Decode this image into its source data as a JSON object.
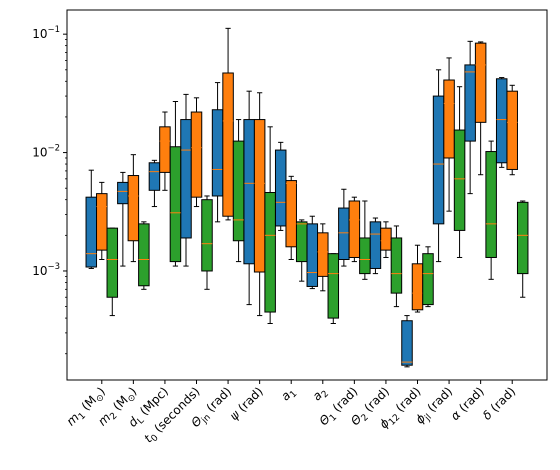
{
  "chart_data": {
    "type": "box",
    "title": "",
    "xlabel": "",
    "ylabel": "",
    "yscale": "log",
    "ylim": [
      0.00012,
      0.16
    ],
    "y_ticks": [
      {
        "value": 0.001,
        "base": "10",
        "exp": "−3"
      },
      {
        "value": 0.01,
        "base": "10",
        "exp": "−2"
      },
      {
        "value": 0.1,
        "base": "10",
        "exp": "−1"
      }
    ],
    "grid": false,
    "legend": "none",
    "categories": [
      {
        "name": "m1",
        "label": "m",
        "sub": "1",
        "unit": " (M",
        "unitsub": "⊙",
        "close": ")"
      },
      {
        "name": "m2",
        "label": "m",
        "sub": "2",
        "unit": " (M",
        "unitsub": "⊙",
        "close": ")"
      },
      {
        "name": "dl",
        "label": "d",
        "sub": "L",
        "unit": " (Mpc)",
        "unitsub": "",
        "close": ""
      },
      {
        "name": "t0",
        "label": "t",
        "sub": "0",
        "unit": " (seconds)",
        "unitsub": "",
        "close": ""
      },
      {
        "name": "theta-jn",
        "label": "Θ",
        "sub": "jn",
        "unit": " (rad)",
        "unitsub": "",
        "close": ""
      },
      {
        "name": "psi",
        "label": "ψ",
        "sub": "",
        "unit": " (rad)",
        "unitsub": "",
        "close": ""
      },
      {
        "name": "a1",
        "label": "a",
        "sub": "1",
        "unit": "",
        "unitsub": "",
        "close": ""
      },
      {
        "name": "a2",
        "label": "a",
        "sub": "2",
        "unit": "",
        "unitsub": "",
        "close": ""
      },
      {
        "name": "theta1",
        "label": "Θ",
        "sub": "1",
        "unit": " (rad)",
        "unitsub": "",
        "close": ""
      },
      {
        "name": "theta2",
        "label": "Θ",
        "sub": "2",
        "unit": " (rad)",
        "unitsub": "",
        "close": ""
      },
      {
        "name": "phi12",
        "label": "ϕ",
        "sub": "12",
        "unit": " (rad)",
        "unitsub": "",
        "close": ""
      },
      {
        "name": "phi-jl",
        "label": "ϕ",
        "sub": "jl",
        "unit": " (rad)",
        "unitsub": "",
        "close": ""
      },
      {
        "name": "alpha",
        "label": "α",
        "sub": "",
        "unit": " (rad)",
        "unitsub": "",
        "close": ""
      },
      {
        "name": "delta",
        "label": "δ",
        "sub": "",
        "unit": " (rad)",
        "unitsub": "",
        "close": ""
      }
    ],
    "series": [
      {
        "color": "#1f77b4",
        "median_color": "#ff7f0e",
        "boxes": [
          {
            "whislo": 0.00105,
            "q1": 0.00108,
            "med": 0.0014,
            "q3": 0.0042,
            "whishi": 0.0071
          },
          {
            "whislo": 0.0011,
            "q1": 0.0037,
            "med": 0.0047,
            "q3": 0.0056,
            "whishi": 0.0068
          },
          {
            "whislo": 0.0035,
            "q1": 0.0048,
            "med": 0.0069,
            "q3": 0.0082,
            "whishi": 0.0086
          },
          {
            "whislo": 0.0011,
            "q1": 0.0019,
            "med": 0.0105,
            "q3": 0.019,
            "whishi": 0.031
          },
          {
            "whislo": 0.0026,
            "q1": 0.0043,
            "med": 0.0072,
            "q3": 0.023,
            "whishi": 0.039
          },
          {
            "whislo": 0.00052,
            "q1": 0.00115,
            "med": 0.0055,
            "q3": 0.019,
            "whishi": 0.033
          },
          {
            "whislo": 0.0022,
            "q1": 0.0024,
            "med": 0.0038,
            "q3": 0.0105,
            "whishi": 0.0122
          },
          {
            "whislo": 0.00071,
            "q1": 0.00074,
            "med": 0.00097,
            "q3": 0.0025,
            "whishi": 0.0029
          },
          {
            "whislo": 0.0011,
            "q1": 0.00125,
            "med": 0.0021,
            "q3": 0.0034,
            "whishi": 0.0049
          },
          {
            "whislo": 0.00095,
            "q1": 0.00105,
            "med": 0.00205,
            "q3": 0.0026,
            "whishi": 0.0028
          },
          {
            "whislo": 0.000155,
            "q1": 0.00016,
            "med": 0.00017,
            "q3": 0.00038,
            "whishi": 0.00042
          },
          {
            "whislo": 0.0012,
            "q1": 0.0025,
            "med": 0.008,
            "q3": 0.03,
            "whishi": 0.05
          },
          {
            "whislo": 0.0045,
            "q1": 0.0125,
            "med": 0.048,
            "q3": 0.055,
            "whishi": 0.087
          },
          {
            "whislo": 0.0075,
            "q1": 0.0082,
            "med": 0.019,
            "q3": 0.042,
            "whishi": 0.043
          }
        ]
      },
      {
        "color": "#ff7f0e",
        "median_color": "#ff7f0e",
        "boxes": [
          {
            "whislo": 0.00125,
            "q1": 0.0015,
            "med": 0.0035,
            "q3": 0.0045,
            "whishi": 0.0056
          },
          {
            "whislo": 0.0012,
            "q1": 0.0018,
            "med": 0.0043,
            "q3": 0.0064,
            "whishi": 0.0096
          },
          {
            "whislo": 0.0048,
            "q1": 0.0068,
            "med": 0.0125,
            "q3": 0.0165,
            "whishi": 0.022
          },
          {
            "whislo": 0.0035,
            "q1": 0.0042,
            "med": 0.011,
            "q3": 0.022,
            "whishi": 0.029
          },
          {
            "whislo": 0.0027,
            "q1": 0.0029,
            "med": 0.0185,
            "q3": 0.047,
            "whishi": 0.112
          },
          {
            "whislo": 0.00042,
            "q1": 0.00098,
            "med": 0.0055,
            "q3": 0.019,
            "whishi": 0.032
          },
          {
            "whislo": 0.00125,
            "q1": 0.0016,
            "med": 0.0055,
            "q3": 0.0058,
            "whishi": 0.0063
          },
          {
            "whislo": 0.00068,
            "q1": 0.0009,
            "med": 0.00145,
            "q3": 0.0021,
            "whishi": 0.0025
          },
          {
            "whislo": 0.0012,
            "q1": 0.0013,
            "med": 0.0027,
            "q3": 0.0039,
            "whishi": 0.0042
          },
          {
            "whislo": 0.0013,
            "q1": 0.0015,
            "med": 0.0018,
            "q3": 0.0023,
            "whishi": 0.0026
          },
          {
            "whislo": 0.00045,
            "q1": 0.00047,
            "med": 0.00065,
            "q3": 0.00115,
            "whishi": 0.00165
          },
          {
            "whislo": 0.0032,
            "q1": 0.009,
            "med": 0.026,
            "q3": 0.041,
            "whishi": 0.063
          },
          {
            "whislo": 0.0065,
            "q1": 0.018,
            "med": 0.055,
            "q3": 0.084,
            "whishi": 0.086
          },
          {
            "whislo": 0.0065,
            "q1": 0.0072,
            "med": 0.018,
            "q3": 0.033,
            "whishi": 0.037
          }
        ]
      },
      {
        "color": "#2ca02c",
        "median_color": "#ff7f0e",
        "boxes": [
          {
            "whislo": 0.00042,
            "q1": 0.0006,
            "med": 0.00125,
            "q3": 0.0023,
            "whishi": 0.0023
          },
          {
            "whislo": 0.0007,
            "q1": 0.00075,
            "med": 0.00125,
            "q3": 0.0025,
            "whishi": 0.0026
          },
          {
            "whislo": 0.0011,
            "q1": 0.0012,
            "med": 0.0031,
            "q3": 0.0112,
            "whishi": 0.027
          },
          {
            "whislo": 0.0007,
            "q1": 0.001,
            "med": 0.0017,
            "q3": 0.004,
            "whishi": 0.0043
          },
          {
            "whislo": 0.0012,
            "q1": 0.0018,
            "med": 0.0027,
            "q3": 0.0125,
            "whishi": 0.019
          },
          {
            "whislo": 0.00036,
            "q1": 0.00045,
            "med": 0.002,
            "q3": 0.0046,
            "whishi": 0.0165
          },
          {
            "whislo": 0.00082,
            "q1": 0.0012,
            "med": 0.0025,
            "q3": 0.0026,
            "whishi": 0.0027
          },
          {
            "whislo": 0.00036,
            "q1": 0.0004,
            "med": 0.00095,
            "q3": 0.0014,
            "whishi": 0.0014
          },
          {
            "whislo": 0.00085,
            "q1": 0.00095,
            "med": 0.00125,
            "q3": 0.0019,
            "whishi": 0.0039
          },
          {
            "whislo": 0.0005,
            "q1": 0.00065,
            "med": 0.00095,
            "q3": 0.0019,
            "whishi": 0.0024
          },
          {
            "whislo": 0.0005,
            "q1": 0.00052,
            "med": 0.00095,
            "q3": 0.0014,
            "whishi": 0.0016
          },
          {
            "whislo": 0.0013,
            "q1": 0.0022,
            "med": 0.006,
            "q3": 0.0155,
            "whishi": 0.036
          },
          {
            "whislo": 0.00085,
            "q1": 0.0013,
            "med": 0.0025,
            "q3": 0.0102,
            "whishi": 0.0125
          },
          {
            "whislo": 0.0006,
            "q1": 0.00095,
            "med": 0.002,
            "q3": 0.0038,
            "whishi": 0.0039
          }
        ]
      }
    ]
  }
}
